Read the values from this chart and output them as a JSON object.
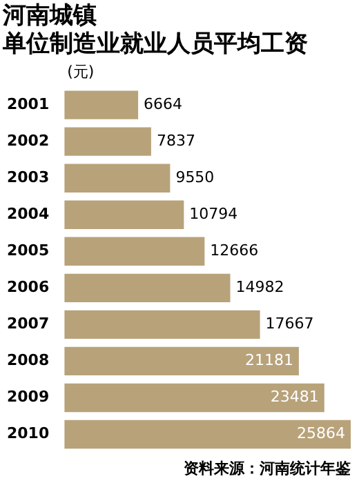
{
  "chart_data": {
    "type": "bar",
    "orientation": "horizontal",
    "title": "河南城镇",
    "subtitle": "单位制造业就业人员平均工资",
    "xlabel": "(元)",
    "categories": [
      "2001",
      "2002",
      "2003",
      "2004",
      "2005",
      "2006",
      "2007",
      "2008",
      "2009",
      "2010"
    ],
    "values": [
      6664,
      7837,
      9550,
      10794,
      12666,
      14982,
      17667,
      21181,
      23481,
      25864
    ],
    "color": "#b8a27a",
    "data_labels": true,
    "annotations": [
      "资料来源：河南统计年鉴"
    ]
  }
}
